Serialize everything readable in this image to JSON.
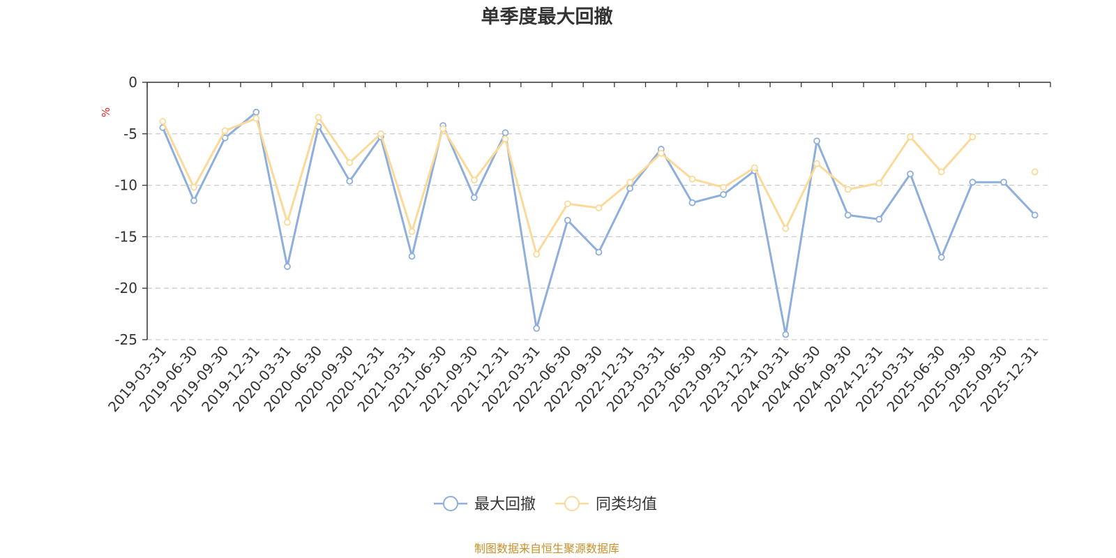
{
  "chart_data": {
    "type": "line",
    "title": "单季度最大回撤",
    "y_unit": "%",
    "ylim": [
      -25,
      0
    ],
    "y_ticks": [
      0,
      -5,
      -10,
      -15,
      -20,
      -25
    ],
    "grid": true,
    "legend_position": "bottom-center",
    "x": [
      "2019-03-31",
      "2019-06-30",
      "2019-09-30",
      "2019-12-31",
      "2020-03-31",
      "2020-06-30",
      "2020-09-30",
      "2020-12-31",
      "2021-03-31",
      "2021-06-30",
      "2021-09-30",
      "2021-12-31",
      "2022-03-31",
      "2022-06-30",
      "2022-09-30",
      "2022-12-31",
      "2023-03-31",
      "2023-06-30",
      "2023-09-30",
      "2023-12-31",
      "2024-03-31",
      "2024-06-30",
      "2024-09-30",
      "2024-12-31",
      "2025-03-31",
      "2025-06-30",
      "2025-09-30",
      "2025-09-30",
      "2025-12-31"
    ],
    "series": [
      {
        "name": "最大回撤",
        "color": "#8eaedb",
        "values": [
          -4.4,
          -11.5,
          -5.4,
          -2.9,
          -17.9,
          -4.3,
          -9.6,
          -5.3,
          -16.9,
          -4.2,
          -11.2,
          -4.9,
          -23.9,
          -13.4,
          -16.5,
          -10.3,
          -6.5,
          -11.7,
          -10.9,
          -8.6,
          -24.5,
          -5.7,
          -12.9,
          -13.3,
          -8.9,
          -17.0,
          -9.7,
          -9.7,
          -12.9
        ]
      },
      {
        "name": "同类均值",
        "color": "#fbd999",
        "values": [
          -3.8,
          -10.2,
          -4.7,
          -3.5,
          -13.6,
          -3.4,
          -7.8,
          -5.0,
          -14.5,
          -4.5,
          -9.5,
          -5.5,
          -16.7,
          -11.8,
          -12.2,
          -9.7,
          -6.9,
          -9.4,
          -10.2,
          -8.3,
          -14.2,
          -7.9,
          -10.4,
          -9.8,
          -5.3,
          -8.7,
          -5.3,
          null,
          -8.7
        ]
      }
    ]
  },
  "source_note": "制图数据来自恒生聚源数据库",
  "colors": {
    "axis": "#333333",
    "grid": "#cccccc",
    "unit": "#e02020",
    "source": "#c8912a"
  }
}
